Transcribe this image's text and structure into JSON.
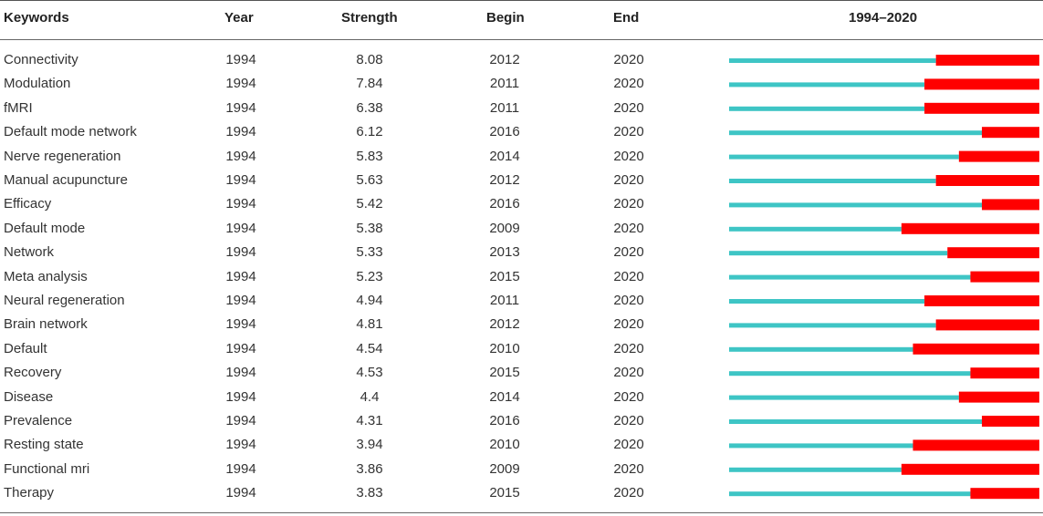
{
  "headers": {
    "keywords": "Keywords",
    "year": "Year",
    "strength": "Strength",
    "begin": "Begin",
    "end": "End",
    "range": "1994–2020"
  },
  "colors": {
    "normal": "#3ec5c5",
    "burst": "#ff0000"
  },
  "chart_data": {
    "type": "table",
    "timeline": {
      "start": 1994,
      "end": 2020
    },
    "rows": [
      {
        "keyword": "Connectivity",
        "year": "1994",
        "strength": "8.08",
        "begin": "2012",
        "end": "2020"
      },
      {
        "keyword": "Modulation",
        "year": "1994",
        "strength": "7.84",
        "begin": "2011",
        "end": "2020"
      },
      {
        "keyword": "fMRI",
        "year": "1994",
        "strength": "6.38",
        "begin": "2011",
        "end": "2020"
      },
      {
        "keyword": "Default mode network",
        "year": "1994",
        "strength": "6.12",
        "begin": "2016",
        "end": "2020"
      },
      {
        "keyword": "Nerve regeneration",
        "year": "1994",
        "strength": "5.83",
        "begin": "2014",
        "end": "2020"
      },
      {
        "keyword": "Manual acupuncture",
        "year": "1994",
        "strength": "5.63",
        "begin": "2012",
        "end": "2020"
      },
      {
        "keyword": "Efficacy",
        "year": "1994",
        "strength": "5.42",
        "begin": "2016",
        "end": "2020"
      },
      {
        "keyword": "Default mode",
        "year": "1994",
        "strength": "5.38",
        "begin": "2009",
        "end": "2020"
      },
      {
        "keyword": "Network",
        "year": "1994",
        "strength": "5.33",
        "begin": "2013",
        "end": "2020"
      },
      {
        "keyword": "Meta analysis",
        "year": "1994",
        "strength": "5.23",
        "begin": "2015",
        "end": "2020"
      },
      {
        "keyword": "Neural regeneration",
        "year": "1994",
        "strength": "4.94",
        "begin": "2011",
        "end": "2020"
      },
      {
        "keyword": "Brain network",
        "year": "1994",
        "strength": "4.81",
        "begin": "2012",
        "end": "2020"
      },
      {
        "keyword": "Default",
        "year": "1994",
        "strength": "4.54",
        "begin": "2010",
        "end": "2020"
      },
      {
        "keyword": "Recovery",
        "year": "1994",
        "strength": "4.53",
        "begin": "2015",
        "end": "2020"
      },
      {
        "keyword": "Disease",
        "year": "1994",
        "strength": "4.4",
        "begin": "2014",
        "end": "2020"
      },
      {
        "keyword": "Prevalence",
        "year": "1994",
        "strength": "4.31",
        "begin": "2016",
        "end": "2020"
      },
      {
        "keyword": "Resting state",
        "year": "1994",
        "strength": "3.94",
        "begin": "2010",
        "end": "2020"
      },
      {
        "keyword": "Functional mri",
        "year": "1994",
        "strength": "3.86",
        "begin": "2009",
        "end": "2020"
      },
      {
        "keyword": "Therapy",
        "year": "1994",
        "strength": "3.83",
        "begin": "2015",
        "end": "2020"
      }
    ]
  }
}
